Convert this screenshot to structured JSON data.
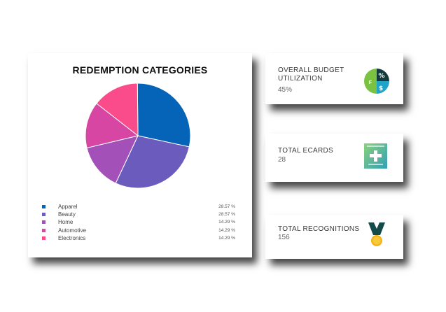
{
  "chart_data": {
    "type": "pie",
    "title": "REDEMPTION CATEGORIES",
    "slices": [
      {
        "label": "Apparel",
        "value": 28.57,
        "display": "28.57 %",
        "color": "#0563b8"
      },
      {
        "label": "Beauty",
        "value": 28.57,
        "display": "28.57 %",
        "color": "#6b5bbd"
      },
      {
        "label": "Home",
        "value": 14.29,
        "display": "14.29 %",
        "color": "#a350b9"
      },
      {
        "label": "Automotive",
        "value": 14.29,
        "display": "14.29 %",
        "color": "#d846a4"
      },
      {
        "label": "Electronics",
        "value": 14.29,
        "display": "14.29 %",
        "color": "#fa4c8a"
      }
    ],
    "legend_position": "bottom"
  },
  "stats": {
    "budget": {
      "label_line1": "OVERALL BUDGET",
      "label_line2": "UTILIZATION",
      "value": "45%",
      "icon": "budget-pie-icon"
    },
    "ecards": {
      "label": "TOTAL ECARDS",
      "value": "28",
      "icon": "ecard-icon"
    },
    "recognitions": {
      "label": "TOTAL RECOGNITIONS",
      "value": "156",
      "icon": "medal-icon"
    }
  }
}
